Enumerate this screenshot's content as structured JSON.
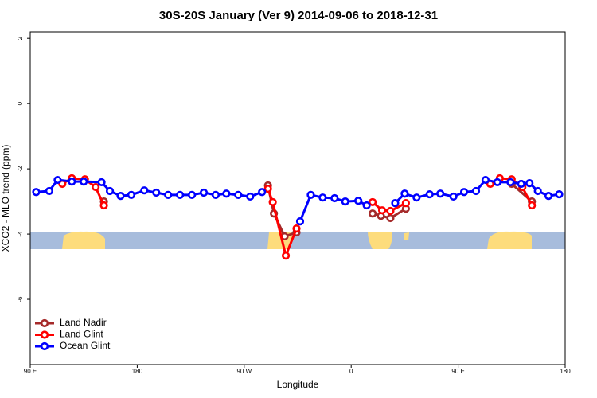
{
  "chart_data": {
    "type": "line",
    "title": "30S-20S January (Ver 9)   2014-09-06 to 2018-12-31",
    "x_label": "Longitude",
    "y_label": "XCO2 - MLO trend (ppm)",
    "xlim": [
      90,
      540
    ],
    "xticks": [
      {
        "value": 90,
        "label": "90 E"
      },
      180,
      {
        "value": 270,
        "label": "90 W"
      },
      {
        "value": 360,
        "label": "0"
      },
      {
        "value": 450,
        "label": "90 E"
      },
      {
        "value": 540,
        "label": "180"
      }
    ],
    "ylim": [
      -8,
      2.2
    ],
    "yticks": [
      2,
      0,
      -2,
      -4,
      -6
    ],
    "legend": "bottom-left",
    "series": [
      {
        "name": "Land Nadir",
        "color": "#a52a2a",
        "x": [
          152,
          null,
          290,
          295,
          304,
          314,
          null,
          378,
          385,
          393,
          406,
          null,
          495,
          512
        ],
        "values": [
          -3.0,
          null,
          -2.51,
          -3.37,
          -4.07,
          -3.95,
          null,
          -3.37,
          -3.44,
          -3.51,
          -3.22,
          null,
          -2.46,
          -3.0
        ]
      },
      {
        "name": "Land Glint",
        "color": "#ff0000",
        "x": [
          117,
          125,
          136,
          145,
          152,
          null,
          290,
          294,
          305,
          314,
          null,
          378,
          386,
          393,
          406,
          null,
          477,
          485,
          495,
          504,
          512
        ],
        "values": [
          -2.46,
          -2.29,
          -2.32,
          -2.56,
          -3.12,
          null,
          -2.61,
          -3.02,
          -4.66,
          -3.83,
          null,
          -3.02,
          -3.27,
          -3.29,
          -3.05,
          null,
          -2.46,
          -2.29,
          -2.32,
          -2.56,
          -3.12
        ]
      },
      {
        "name": "Ocean Glint",
        "color": "#0000ff",
        "x": [
          95,
          106,
          113,
          125,
          135,
          150,
          157,
          166,
          175,
          186,
          196,
          206,
          216,
          226,
          236,
          246,
          255,
          265,
          275,
          285,
          null,
          317,
          326,
          336,
          346,
          355,
          366,
          373,
          null,
          397,
          405,
          415,
          426,
          435,
          446,
          455,
          465,
          473,
          483,
          494,
          503,
          510,
          517,
          526,
          535
        ],
        "values": [
          -2.71,
          -2.68,
          -2.34,
          -2.39,
          -2.39,
          -2.41,
          -2.68,
          -2.83,
          -2.8,
          -2.66,
          -2.73,
          -2.8,
          -2.8,
          -2.8,
          -2.73,
          -2.8,
          -2.76,
          -2.8,
          -2.85,
          -2.71,
          null,
          -3.61,
          -2.8,
          -2.88,
          -2.9,
          -3.0,
          -2.98,
          -3.12,
          null,
          -3.05,
          -2.76,
          -2.88,
          -2.78,
          -2.76,
          -2.85,
          -2.71,
          -2.68,
          -2.34,
          -2.41,
          -2.41,
          -2.46,
          -2.44,
          -2.68,
          -2.83,
          -2.78
        ]
      }
    ]
  }
}
